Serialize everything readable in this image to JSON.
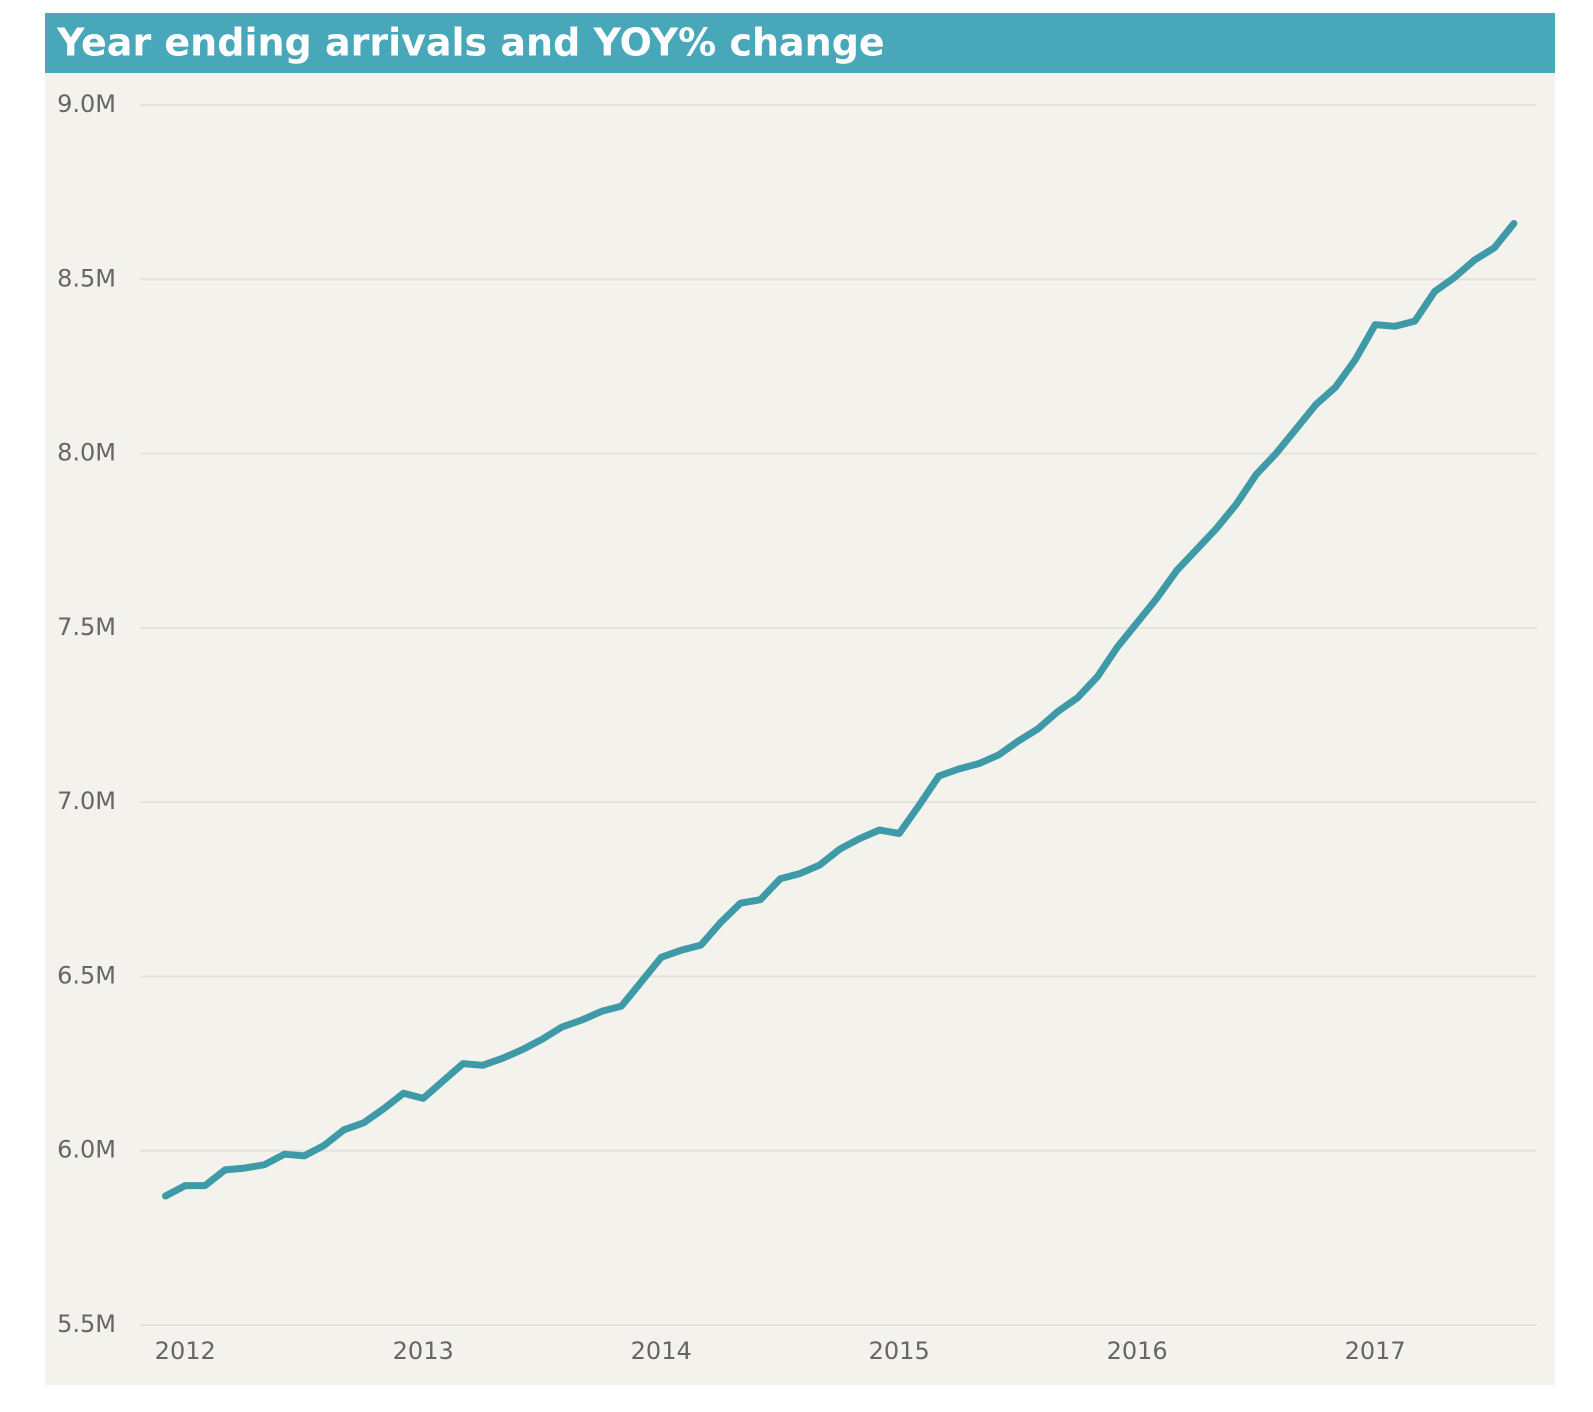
{
  "chart_data": {
    "type": "line",
    "title": "Year ending arrivals and YOY% change",
    "x": [
      2011.917,
      2012,
      2012.083,
      2012.167,
      2012.25,
      2012.333,
      2012.417,
      2012.5,
      2012.583,
      2012.667,
      2012.75,
      2012.833,
      2012.917,
      2013,
      2013.083,
      2013.167,
      2013.25,
      2013.333,
      2013.417,
      2013.5,
      2013.583,
      2013.667,
      2013.75,
      2013.833,
      2013.917,
      2014,
      2014.083,
      2014.167,
      2014.25,
      2014.333,
      2014.417,
      2014.5,
      2014.583,
      2014.667,
      2014.75,
      2014.833,
      2014.917,
      2015,
      2015.083,
      2015.167,
      2015.25,
      2015.333,
      2015.417,
      2015.5,
      2015.583,
      2015.667,
      2015.75,
      2015.833,
      2015.917,
      2016,
      2016.083,
      2016.167,
      2016.25,
      2016.333,
      2016.417,
      2016.5,
      2016.583,
      2016.667,
      2016.75,
      2016.833,
      2016.917,
      2017,
      2017.083,
      2017.167,
      2017.25,
      2017.333,
      2017.417,
      2017.5,
      2017.583
    ],
    "series": [
      {
        "name": "Arrivals",
        "color": "#3f9aa7",
        "values": [
          5870000,
          5900000,
          5900000,
          5945000,
          5950000,
          5960000,
          5990000,
          5985000,
          6015000,
          6060000,
          6080000,
          6120000,
          6165000,
          6150000,
          6200000,
          6250000,
          6245000,
          6265000,
          6290000,
          6320000,
          6355000,
          6375000,
          6400000,
          6415000,
          6485000,
          6555000,
          6575000,
          6590000,
          6655000,
          6710000,
          6720000,
          6780000,
          6795000,
          6820000,
          6865000,
          6895000,
          6920000,
          6910000,
          6990000,
          7075000,
          7095000,
          7110000,
          7135000,
          7175000,
          7210000,
          7260000,
          7300000,
          7360000,
          7445000,
          7515000,
          7585000,
          7665000,
          7725000,
          7785000,
          7855000,
          7940000,
          8000000,
          8070000,
          8140000,
          8190000,
          8270000,
          8370000,
          8365000,
          8380000,
          8465000,
          8505000,
          8555000,
          8590000,
          8660000
        ]
      }
    ],
    "xlim": [
      2011.81,
      2017.68
    ],
    "xticks": [
      2012,
      2013,
      2014,
      2015,
      2016,
      2017
    ],
    "ylim": [
      5500000,
      9000000
    ],
    "yticks": [
      {
        "value": 5500000,
        "label": "5.5M"
      },
      {
        "value": 6000000,
        "label": "6.0M"
      },
      {
        "value": 6500000,
        "label": "6.5M"
      },
      {
        "value": 7000000,
        "label": "7.0M"
      },
      {
        "value": 7500000,
        "label": "7.5M"
      },
      {
        "value": 8000000,
        "label": "8.0M"
      },
      {
        "value": 8500000,
        "label": "8.5M"
      },
      {
        "value": 9000000,
        "label": "9.0M"
      }
    ],
    "grid": true
  }
}
